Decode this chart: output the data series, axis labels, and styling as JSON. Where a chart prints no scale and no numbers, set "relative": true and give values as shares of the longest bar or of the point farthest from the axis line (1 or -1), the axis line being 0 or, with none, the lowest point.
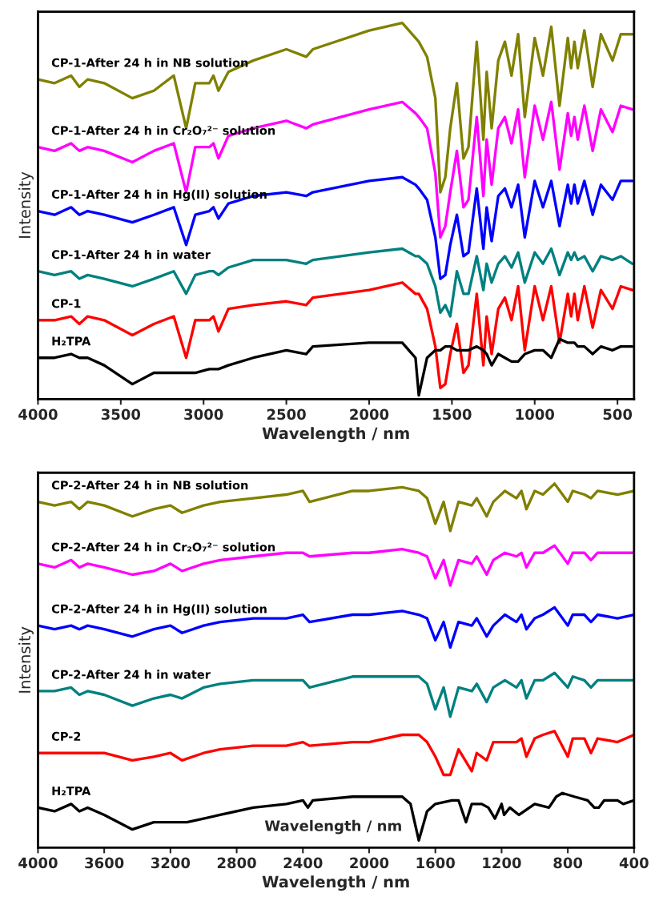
{
  "chart_data": [
    {
      "type": "line",
      "relative": true,
      "xlabel": "Wavelength / nm",
      "ylabel": "Intensity",
      "xlim": [
        4000,
        400
      ],
      "xticks": [
        4000,
        3500,
        3000,
        2500,
        2000,
        1500,
        1000,
        500
      ],
      "tick_labels": "x",
      "legend": false,
      "grid": false,
      "x": [
        4000,
        3900,
        3800,
        3750,
        3700,
        3600,
        3430,
        3300,
        3180,
        3105,
        3050,
        2965,
        2940,
        2910,
        2850,
        2700,
        2500,
        2380,
        2340,
        2000,
        1800,
        1720,
        1700,
        1650,
        1600,
        1570,
        1540,
        1510,
        1470,
        1430,
        1400,
        1350,
        1310,
        1290,
        1260,
        1220,
        1180,
        1140,
        1100,
        1060,
        1000,
        950,
        900,
        850,
        800,
        780,
        760,
        740,
        700,
        650,
        600,
        530,
        480,
        410
      ],
      "series": [
        {
          "name": "CP-1-After 24 h in NB solution",
          "color": "#808000",
          "values": [
            0.85,
            0.84,
            0.86,
            0.83,
            0.85,
            0.84,
            0.8,
            0.82,
            0.86,
            0.72,
            0.84,
            0.84,
            0.86,
            0.82,
            0.87,
            0.9,
            0.93,
            0.91,
            0.93,
            0.98,
            1.0,
            0.96,
            0.95,
            0.91,
            0.8,
            0.55,
            0.59,
            0.72,
            0.84,
            0.64,
            0.67,
            0.95,
            0.69,
            0.87,
            0.72,
            0.9,
            0.95,
            0.86,
            0.97,
            0.75,
            0.96,
            0.86,
            0.99,
            0.78,
            0.96,
            0.88,
            0.95,
            0.88,
            0.98,
            0.83,
            0.97,
            0.9,
            0.97,
            0.97
          ]
        },
        {
          "name": "CP-1-After 24 h in Cr₂O₇²⁻ solution",
          "color": "#ff00ff",
          "values": [
            0.67,
            0.66,
            0.68,
            0.66,
            0.67,
            0.66,
            0.63,
            0.66,
            0.68,
            0.55,
            0.67,
            0.67,
            0.68,
            0.64,
            0.7,
            0.72,
            0.74,
            0.72,
            0.73,
            0.77,
            0.79,
            0.76,
            0.75,
            0.72,
            0.6,
            0.43,
            0.46,
            0.55,
            0.66,
            0.51,
            0.53,
            0.75,
            0.54,
            0.69,
            0.57,
            0.72,
            0.75,
            0.68,
            0.77,
            0.59,
            0.78,
            0.69,
            0.79,
            0.61,
            0.76,
            0.7,
            0.75,
            0.69,
            0.78,
            0.66,
            0.77,
            0.71,
            0.78,
            0.77
          ]
        },
        {
          "name": "CP-1-After 24 h in Hg(II) solution",
          "color": "#0000ff",
          "values": [
            0.5,
            0.49,
            0.51,
            0.49,
            0.5,
            0.49,
            0.47,
            0.49,
            0.51,
            0.41,
            0.49,
            0.5,
            0.51,
            0.48,
            0.52,
            0.54,
            0.55,
            0.54,
            0.55,
            0.58,
            0.59,
            0.57,
            0.56,
            0.53,
            0.43,
            0.32,
            0.33,
            0.41,
            0.49,
            0.38,
            0.39,
            0.56,
            0.4,
            0.51,
            0.42,
            0.54,
            0.56,
            0.51,
            0.57,
            0.43,
            0.58,
            0.51,
            0.58,
            0.46,
            0.57,
            0.52,
            0.57,
            0.52,
            0.58,
            0.49,
            0.57,
            0.53,
            0.58,
            0.58
          ]
        },
        {
          "name": "CP-1-After 24 h in water",
          "color": "#008080",
          "values": [
            0.34,
            0.33,
            0.34,
            0.32,
            0.33,
            0.32,
            0.3,
            0.32,
            0.34,
            0.28,
            0.33,
            0.34,
            0.34,
            0.33,
            0.35,
            0.37,
            0.37,
            0.36,
            0.37,
            0.39,
            0.4,
            0.38,
            0.38,
            0.36,
            0.3,
            0.23,
            0.25,
            0.22,
            0.34,
            0.28,
            0.28,
            0.38,
            0.29,
            0.36,
            0.31,
            0.36,
            0.38,
            0.35,
            0.39,
            0.31,
            0.39,
            0.36,
            0.4,
            0.33,
            0.39,
            0.37,
            0.39,
            0.37,
            0.38,
            0.34,
            0.38,
            0.37,
            0.38,
            0.36
          ]
        },
        {
          "name": "CP-1",
          "color": "#ff0000",
          "values": [
            0.21,
            0.21,
            0.22,
            0.2,
            0.22,
            0.21,
            0.17,
            0.2,
            0.22,
            0.11,
            0.21,
            0.21,
            0.22,
            0.18,
            0.24,
            0.25,
            0.26,
            0.25,
            0.27,
            0.29,
            0.31,
            0.28,
            0.28,
            0.24,
            0.14,
            0.03,
            0.04,
            0.12,
            0.2,
            0.07,
            0.09,
            0.28,
            0.09,
            0.22,
            0.12,
            0.24,
            0.27,
            0.21,
            0.3,
            0.13,
            0.3,
            0.21,
            0.3,
            0.15,
            0.28,
            0.22,
            0.28,
            0.21,
            0.3,
            0.19,
            0.29,
            0.24,
            0.3,
            0.29
          ]
        },
        {
          "name": "H₂TPA",
          "color": "#000000",
          "values": [
            0.11,
            0.11,
            0.12,
            0.11,
            0.11,
            0.09,
            0.04,
            0.07,
            0.07,
            0.07,
            0.07,
            0.08,
            0.08,
            0.08,
            0.09,
            0.11,
            0.13,
            0.12,
            0.14,
            0.15,
            0.15,
            0.11,
            0.01,
            0.11,
            0.13,
            0.13,
            0.14,
            0.14,
            0.13,
            0.13,
            0.13,
            0.14,
            0.13,
            0.12,
            0.09,
            0.12,
            0.11,
            0.1,
            0.1,
            0.12,
            0.13,
            0.13,
            0.11,
            0.16,
            0.15,
            0.15,
            0.15,
            0.14,
            0.14,
            0.12,
            0.14,
            0.13,
            0.14,
            0.14
          ]
        }
      ]
    },
    {
      "type": "line",
      "relative": true,
      "xlabel": "Wavelength / nm",
      "ylabel": "Intensity",
      "xlim": [
        4000,
        400
      ],
      "xticks": [
        4000,
        3600,
        3200,
        2800,
        2400,
        2000,
        1600,
        1200,
        800,
        400
      ],
      "tick_labels": "x",
      "legend": false,
      "grid": false,
      "annotations": [
        "Wavelength / nm"
      ],
      "x": [
        4000,
        3900,
        3800,
        3750,
        3700,
        3600,
        3430,
        3300,
        3200,
        3130,
        3000,
        2900,
        2700,
        2500,
        2400,
        2360,
        2100,
        2000,
        1800,
        1700,
        1650,
        1600,
        1550,
        1510,
        1460,
        1380,
        1350,
        1290,
        1250,
        1180,
        1110,
        1080,
        1050,
        1000,
        950,
        880,
        800,
        770,
        700,
        660,
        620,
        500,
        400
      ],
      "series": [
        {
          "name": "CP-2-After 24 h in NB solution",
          "color": "#808000",
          "values": [
            0.95,
            0.94,
            0.95,
            0.93,
            0.95,
            0.94,
            0.91,
            0.93,
            0.94,
            0.92,
            0.94,
            0.95,
            0.96,
            0.97,
            0.98,
            0.95,
            0.98,
            0.98,
            0.99,
            0.98,
            0.96,
            0.89,
            0.95,
            0.87,
            0.95,
            0.94,
            0.96,
            0.91,
            0.95,
            0.98,
            0.96,
            0.98,
            0.93,
            0.98,
            0.97,
            1.0,
            0.95,
            0.98,
            0.97,
            0.96,
            0.98,
            0.97,
            0.98
          ]
        },
        {
          "name": "CP-2-After 24 h in Cr₂O₇²⁻ solution",
          "color": "#ff00ff",
          "values": [
            0.78,
            0.77,
            0.79,
            0.77,
            0.78,
            0.77,
            0.75,
            0.76,
            0.78,
            0.76,
            0.78,
            0.79,
            0.8,
            0.81,
            0.81,
            0.8,
            0.81,
            0.81,
            0.82,
            0.81,
            0.8,
            0.74,
            0.79,
            0.72,
            0.79,
            0.78,
            0.8,
            0.75,
            0.79,
            0.81,
            0.8,
            0.81,
            0.77,
            0.81,
            0.81,
            0.83,
            0.78,
            0.81,
            0.81,
            0.79,
            0.81,
            0.81,
            0.81
          ]
        },
        {
          "name": "CP-2-After 24 h in Hg(II) solution",
          "color": "#0000ff",
          "values": [
            0.61,
            0.6,
            0.61,
            0.6,
            0.61,
            0.6,
            0.58,
            0.6,
            0.61,
            0.59,
            0.61,
            0.62,
            0.63,
            0.63,
            0.64,
            0.62,
            0.64,
            0.64,
            0.65,
            0.64,
            0.63,
            0.57,
            0.62,
            0.55,
            0.62,
            0.61,
            0.63,
            0.58,
            0.61,
            0.64,
            0.62,
            0.64,
            0.6,
            0.63,
            0.64,
            0.66,
            0.61,
            0.64,
            0.64,
            0.62,
            0.64,
            0.63,
            0.64
          ]
        },
        {
          "name": "CP-2-After 24 h in water",
          "color": "#008080",
          "values": [
            0.43,
            0.43,
            0.44,
            0.42,
            0.43,
            0.42,
            0.39,
            0.41,
            0.42,
            0.41,
            0.44,
            0.45,
            0.46,
            0.46,
            0.46,
            0.44,
            0.47,
            0.47,
            0.47,
            0.47,
            0.45,
            0.38,
            0.44,
            0.36,
            0.44,
            0.43,
            0.45,
            0.4,
            0.44,
            0.46,
            0.44,
            0.46,
            0.41,
            0.46,
            0.46,
            0.48,
            0.44,
            0.47,
            0.46,
            0.44,
            0.46,
            0.46,
            0.46
          ]
        },
        {
          "name": "CP-2",
          "color": "#ff0000",
          "values": [
            0.26,
            0.26,
            0.26,
            0.26,
            0.26,
            0.26,
            0.24,
            0.25,
            0.26,
            0.24,
            0.26,
            0.27,
            0.28,
            0.28,
            0.29,
            0.28,
            0.29,
            0.29,
            0.31,
            0.31,
            0.29,
            0.25,
            0.2,
            0.2,
            0.27,
            0.21,
            0.26,
            0.24,
            0.29,
            0.29,
            0.29,
            0.3,
            0.25,
            0.3,
            0.31,
            0.32,
            0.25,
            0.3,
            0.3,
            0.26,
            0.3,
            0.29,
            0.31
          ]
        },
        {
          "name": "H₂TPA",
          "color": "#000000",
          "x": [
            4000,
            3900,
            3800,
            3750,
            3700,
            3600,
            3430,
            3300,
            3200,
            3100,
            3000,
            2900,
            2700,
            2500,
            2400,
            2370,
            2340,
            2100,
            2000,
            1800,
            1750,
            1700,
            1650,
            1600,
            1500,
            1460,
            1415,
            1380,
            1320,
            1280,
            1240,
            1200,
            1185,
            1150,
            1095,
            1000,
            914,
            870,
            833,
            760,
            680,
            640,
            613,
            580,
            500,
            465,
            400
          ],
          "values": [
            0.11,
            0.1,
            0.12,
            0.1,
            0.11,
            0.09,
            0.05,
            0.07,
            0.07,
            0.07,
            0.08,
            0.09,
            0.11,
            0.12,
            0.13,
            0.11,
            0.13,
            0.14,
            0.14,
            0.14,
            0.12,
            0.02,
            0.1,
            0.12,
            0.13,
            0.13,
            0.07,
            0.12,
            0.12,
            0.11,
            0.08,
            0.12,
            0.09,
            0.11,
            0.09,
            0.12,
            0.11,
            0.14,
            0.15,
            0.14,
            0.13,
            0.11,
            0.11,
            0.13,
            0.13,
            0.12,
            0.13
          ]
        }
      ]
    }
  ]
}
